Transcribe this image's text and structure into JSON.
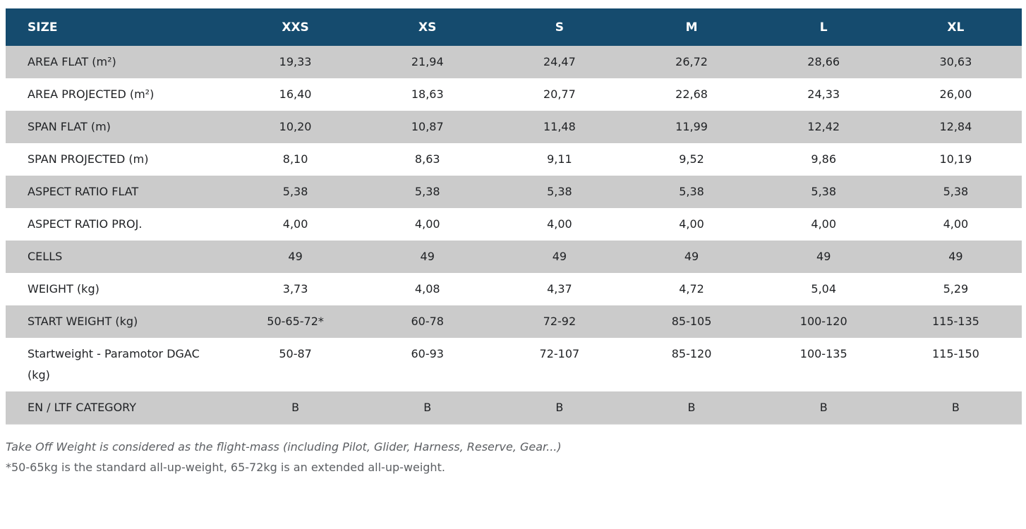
{
  "table": {
    "header": {
      "label": "SIZE",
      "sizes": [
        "XXS",
        "XS",
        "S",
        "M",
        "L",
        "XL"
      ]
    },
    "rows": [
      {
        "label": "AREA FLAT (m²)",
        "values": [
          "19,33",
          "21,94",
          "24,47",
          "26,72",
          "28,66",
          "30,63"
        ]
      },
      {
        "label": "AREA PROJECTED (m²)",
        "values": [
          "16,40",
          "18,63",
          "20,77",
          "22,68",
          "24,33",
          "26,00"
        ]
      },
      {
        "label": "SPAN FLAT (m)",
        "values": [
          "10,20",
          "10,87",
          "11,48",
          "11,99",
          "12,42",
          "12,84"
        ]
      },
      {
        "label": "SPAN PROJECTED (m)",
        "values": [
          "8,10",
          "8,63",
          "9,11",
          "9,52",
          "9,86",
          "10,19"
        ]
      },
      {
        "label": "ASPECT RATIO FLAT",
        "values": [
          "5,38",
          "5,38",
          "5,38",
          "5,38",
          "5,38",
          "5,38"
        ]
      },
      {
        "label": "ASPECT RATIO PROJ.",
        "values": [
          "4,00",
          "4,00",
          "4,00",
          "4,00",
          "4,00",
          "4,00"
        ]
      },
      {
        "label": "CELLS",
        "values": [
          "49",
          "49",
          "49",
          "49",
          "49",
          "49"
        ]
      },
      {
        "label": "WEIGHT (kg)",
        "values": [
          "3,73",
          "4,08",
          "4,37",
          "4,72",
          "5,04",
          "5,29"
        ]
      },
      {
        "label": "START WEIGHT (kg)",
        "values": [
          "50-65-72*",
          "60-78",
          "72-92",
          "85-105",
          "100-120",
          "115-135"
        ]
      },
      {
        "label": "Startweight - Paramotor DGAC (kg)",
        "values": [
          "50-87",
          "60-93",
          "72-107",
          "85-120",
          "100-135",
          "115-150"
        ]
      },
      {
        "label": "EN / LTF CATEGORY",
        "values": [
          "B",
          "B",
          "B",
          "B",
          "B",
          "B"
        ]
      }
    ]
  },
  "notes": {
    "takeoff": "Take Off Weight is considered as the flight-mass (including Pilot, Glider, Harness, Reserve, Gear...)",
    "footnote": "*50-65kg is the standard all-up-weight, 65-72kg is an extended all-up-weight."
  },
  "colors": {
    "header_bg": "#154b6e",
    "row_shade": "#cbcbcb",
    "row_plain": "#ffffff"
  }
}
